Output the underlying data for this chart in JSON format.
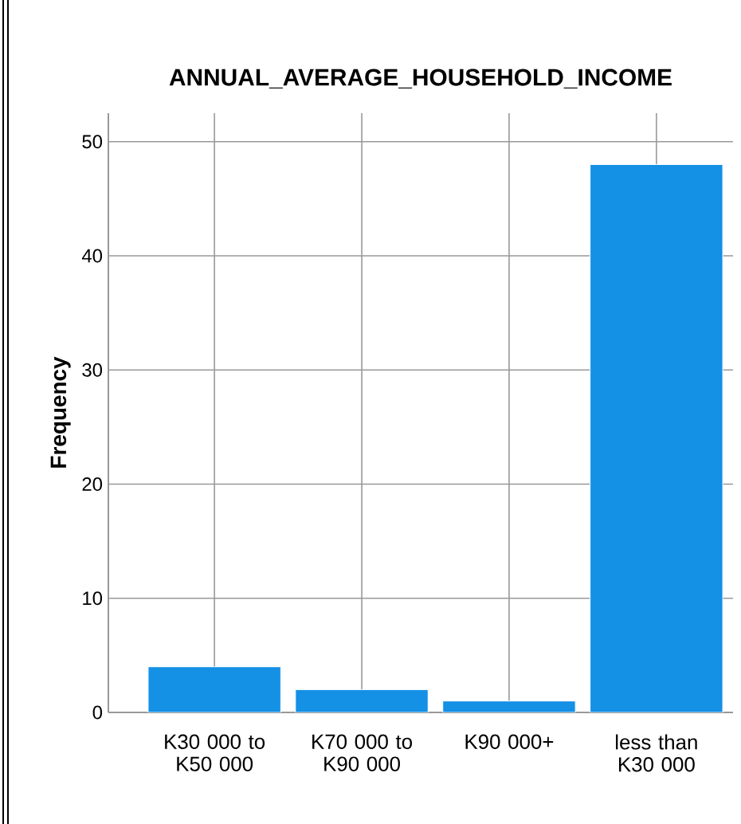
{
  "chart_data": {
    "type": "bar",
    "title": "ANNUAL_AVERAGE_HOUSEHOLD_INCOME",
    "ylabel": "Frequency",
    "categories": [
      "K30 000 to K50 000",
      "K70 000 to K90 000",
      "K90 000+",
      "less than K30 000"
    ],
    "values": [
      4,
      2,
      1,
      48
    ],
    "color": "#1490e5",
    "ylim": [
      0,
      52.5
    ],
    "yticks": [
      0,
      10,
      20,
      30,
      40,
      50
    ],
    "grid": true
  }
}
